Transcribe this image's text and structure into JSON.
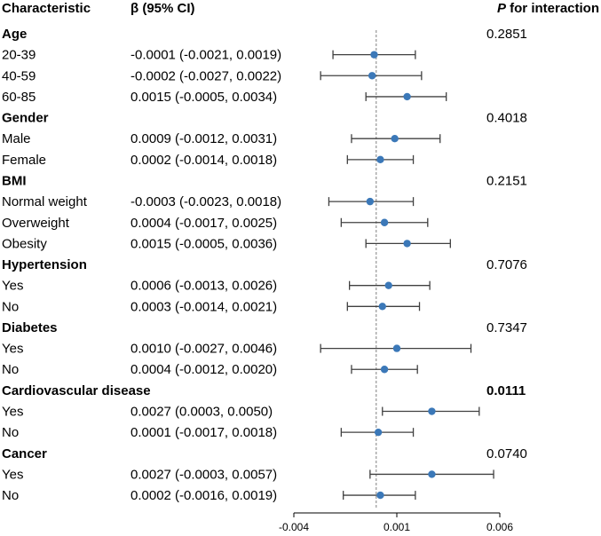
{
  "headers": {
    "characteristic": "Characteristic",
    "beta": "β (95% CI)",
    "p_italic": "P",
    "p_rest": " for interaction"
  },
  "colors": {
    "point": "#3b78b8",
    "whisker": "#404040",
    "reference": "#808080",
    "axis": "#000000"
  },
  "chart_data": {
    "type": "forest",
    "xlim": [
      -0.004,
      0.006
    ],
    "xticks": [
      -0.004,
      0.001,
      0.006
    ],
    "xtick_labels": [
      "-0.004",
      "0.001",
      "0.006"
    ],
    "reference_line": 0.0,
    "groups": [
      {
        "name": "Age",
        "p": "0.2851",
        "p_bold": false,
        "rows": [
          {
            "label": "20-39",
            "ci_text": "-0.0001 (-0.0021, 0.0019)",
            "est": -0.0001,
            "lo": -0.0021,
            "hi": 0.0019
          },
          {
            "label": "40-59",
            "ci_text": "-0.0002 (-0.0027, 0.0022)",
            "est": -0.0002,
            "lo": -0.0027,
            "hi": 0.0022
          },
          {
            "label": "60-85",
            "ci_text": "0.0015 (-0.0005, 0.0034)",
            "est": 0.0015,
            "lo": -0.0005,
            "hi": 0.0034
          }
        ]
      },
      {
        "name": "Gender",
        "p": "0.4018",
        "p_bold": false,
        "rows": [
          {
            "label": "Male",
            "ci_text": "0.0009 (-0.0012, 0.0031)",
            "est": 0.0009,
            "lo": -0.0012,
            "hi": 0.0031
          },
          {
            "label": "Female",
            "ci_text": "0.0002 (-0.0014, 0.0018)",
            "est": 0.0002,
            "lo": -0.0014,
            "hi": 0.0018
          }
        ]
      },
      {
        "name": "BMI",
        "p": "0.2151",
        "p_bold": false,
        "rows": [
          {
            "label": "Normal weight",
            "ci_text": "-0.0003 (-0.0023, 0.0018)",
            "est": -0.0003,
            "lo": -0.0023,
            "hi": 0.0018
          },
          {
            "label": "Overweight",
            "ci_text": "0.0004 (-0.0017, 0.0025)",
            "est": 0.0004,
            "lo": -0.0017,
            "hi": 0.0025
          },
          {
            "label": "Obesity",
            "ci_text": "0.0015 (-0.0005, 0.0036)",
            "est": 0.0015,
            "lo": -0.0005,
            "hi": 0.0036
          }
        ]
      },
      {
        "name": "Hypertension",
        "p": "0.7076",
        "p_bold": false,
        "rows": [
          {
            "label": "Yes",
            "ci_text": "0.0006 (-0.0013, 0.0026)",
            "est": 0.0006,
            "lo": -0.0013,
            "hi": 0.0026
          },
          {
            "label": "No",
            "ci_text": "0.0003 (-0.0014, 0.0021)",
            "est": 0.0003,
            "lo": -0.0014,
            "hi": 0.0021
          }
        ]
      },
      {
        "name": "Diabetes",
        "p": "0.7347",
        "p_bold": false,
        "rows": [
          {
            "label": "Yes",
            "ci_text": "0.0010 (-0.0027, 0.0046)",
            "est": 0.001,
            "lo": -0.0027,
            "hi": 0.0046
          },
          {
            "label": "No",
            "ci_text": "0.0004 (-0.0012, 0.0020)",
            "est": 0.0004,
            "lo": -0.0012,
            "hi": 0.002
          }
        ]
      },
      {
        "name": "Cardiovascular disease",
        "p": "0.0111",
        "p_bold": true,
        "rows": [
          {
            "label": "Yes",
            "ci_text": "0.0027 (0.0003, 0.0050)",
            "est": 0.0027,
            "lo": 0.0003,
            "hi": 0.005
          },
          {
            "label": "No",
            "ci_text": "0.0001 (-0.0017, 0.0018)",
            "est": 0.0001,
            "lo": -0.0017,
            "hi": 0.0018
          }
        ]
      },
      {
        "name": "Cancer",
        "p": "0.0740",
        "p_bold": false,
        "rows": [
          {
            "label": "Yes",
            "ci_text": "0.0027 (-0.0003, 0.0057)",
            "est": 0.0027,
            "lo": -0.0003,
            "hi": 0.0057
          },
          {
            "label": "No",
            "ci_text": "0.0002 (-0.0016, 0.0019)",
            "est": 0.0002,
            "lo": -0.0016,
            "hi": 0.0019
          }
        ]
      }
    ]
  }
}
